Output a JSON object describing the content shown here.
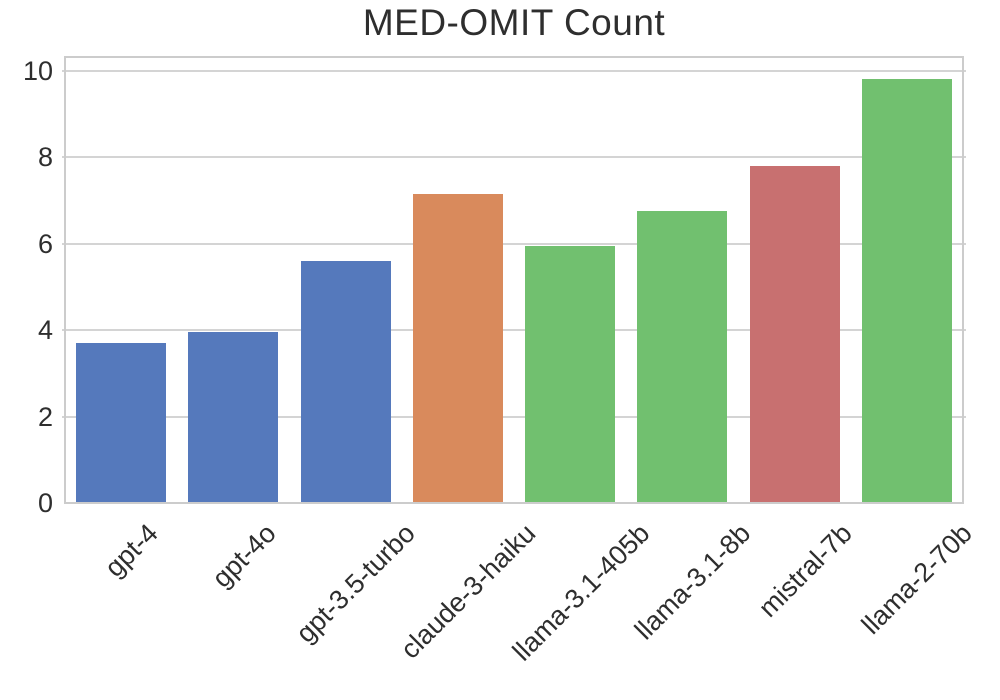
{
  "chart_data": {
    "type": "bar",
    "title": "MED-OMIT Count",
    "categories": [
      "gpt-4",
      "gpt-4o",
      "gpt-3.5-turbo",
      "claude-3-haiku",
      "llama-3.1-405b",
      "llama-3.1-8b",
      "mistral-7b",
      "llama-2-70b"
    ],
    "values": [
      3.7,
      3.95,
      5.6,
      7.15,
      5.95,
      6.75,
      7.8,
      9.8
    ],
    "bar_colors": [
      "#5579bc",
      "#5579bc",
      "#5579bc",
      "#d98a5c",
      "#71c06f",
      "#71c06f",
      "#c87070",
      "#71c06f"
    ],
    "yticks": [
      0,
      2,
      4,
      6,
      8,
      10
    ],
    "ytick_labels": [
      "0",
      "2",
      "4",
      "6",
      "8",
      "10"
    ],
    "ylim": [
      0,
      10.32
    ],
    "xlabel": "",
    "ylabel": "",
    "grid": true,
    "legend_position": "none",
    "x_tick_rotation_deg": 45,
    "bar_width_fraction": 0.8,
    "colors": {
      "grid": "#d4d4d4",
      "spine": "#cccccc",
      "text": "#2e2e2e",
      "background": "#ffffff"
    }
  }
}
